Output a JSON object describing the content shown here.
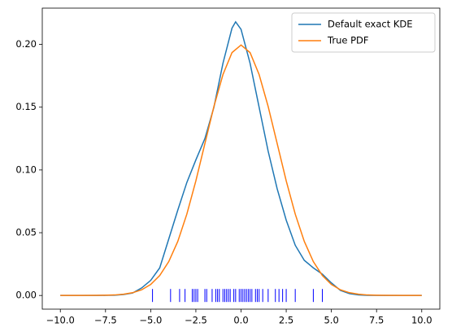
{
  "chart_data": {
    "type": "line",
    "xlim": [
      -11,
      11
    ],
    "ylim": [
      -0.0109,
      0.2289
    ],
    "xticks": [
      {
        "value": -10,
        "label": "−10.0"
      },
      {
        "value": -7.5,
        "label": "−7.5"
      },
      {
        "value": -5,
        "label": "−5.0"
      },
      {
        "value": -2.5,
        "label": "−2.5"
      },
      {
        "value": 0,
        "label": "0.0"
      },
      {
        "value": 2.5,
        "label": "2.5"
      },
      {
        "value": 5,
        "label": "5.0"
      },
      {
        "value": 7.5,
        "label": "7.5"
      },
      {
        "value": 10,
        "label": "10.0"
      }
    ],
    "yticks": [
      {
        "value": 0,
        "label": "0.00"
      },
      {
        "value": 0.05,
        "label": "0.05"
      },
      {
        "value": 0.1,
        "label": "0.10"
      },
      {
        "value": 0.15,
        "label": "0.15"
      },
      {
        "value": 0.2,
        "label": "0.20"
      }
    ],
    "legend": "upper right",
    "series": [
      {
        "name": "Default exact KDE",
        "color": "#1f77b4",
        "x": [
          -10,
          -9,
          -8,
          -7.5,
          -7,
          -6.5,
          -6,
          -5.5,
          -5,
          -4.5,
          -4,
          -3.5,
          -3,
          -2.5,
          -2,
          -1.5,
          -1,
          -0.5,
          -0.3,
          0,
          0.5,
          1,
          1.5,
          2,
          2.5,
          3,
          3.5,
          4,
          4.5,
          5,
          5.5,
          6,
          6.5,
          7,
          8,
          9,
          10
        ],
        "values": [
          0,
          0,
          0,
          0.0001,
          0.0002,
          0.0008,
          0.002,
          0.006,
          0.012,
          0.022,
          0.045,
          0.068,
          0.09,
          0.108,
          0.125,
          0.15,
          0.185,
          0.213,
          0.218,
          0.212,
          0.185,
          0.15,
          0.115,
          0.085,
          0.06,
          0.04,
          0.028,
          0.022,
          0.017,
          0.01,
          0.004,
          0.0015,
          0.0004,
          0.0001,
          0,
          0,
          0
        ]
      },
      {
        "name": "True PDF",
        "color": "#ff7f0e",
        "x": [
          -10,
          -9,
          -8,
          -7.5,
          -7,
          -6.5,
          -6,
          -5.5,
          -5,
          -4.5,
          -4,
          -3.5,
          -3,
          -2.5,
          -2,
          -1.5,
          -1,
          -0.5,
          0,
          0.5,
          1,
          1.5,
          2,
          2.5,
          3,
          3.5,
          4,
          4.5,
          5,
          5.5,
          6,
          6.5,
          7,
          7.5,
          8,
          9,
          10
        ],
        "values": [
          0,
          0,
          0.0001,
          0.0002,
          0.0004,
          0.001,
          0.0022,
          0.0045,
          0.0088,
          0.0159,
          0.027,
          0.0431,
          0.0648,
          0.0913,
          0.121,
          0.1506,
          0.176,
          0.1935,
          0.1995,
          0.1935,
          0.176,
          0.1506,
          0.121,
          0.0913,
          0.0648,
          0.0431,
          0.027,
          0.0159,
          0.0088,
          0.0045,
          0.0022,
          0.001,
          0.0004,
          0.0002,
          0.0001,
          0,
          0
        ]
      }
    ],
    "rug": {
      "color": "#0000ff",
      "y": 0,
      "x": [
        -4.9,
        -3.9,
        -3.4,
        -3.1,
        -2.7,
        -2.6,
        -2.5,
        -2.4,
        -2.0,
        -1.9,
        -1.6,
        -1.4,
        -1.3,
        -1.2,
        -1.0,
        -0.9,
        -0.8,
        -0.7,
        -0.6,
        -0.4,
        -0.3,
        -0.1,
        0.0,
        0.1,
        0.2,
        0.3,
        0.4,
        0.5,
        0.6,
        0.8,
        0.9,
        1.0,
        1.2,
        1.5,
        1.9,
        2.1,
        2.3,
        2.5,
        3.0,
        4.0,
        4.5
      ]
    }
  }
}
